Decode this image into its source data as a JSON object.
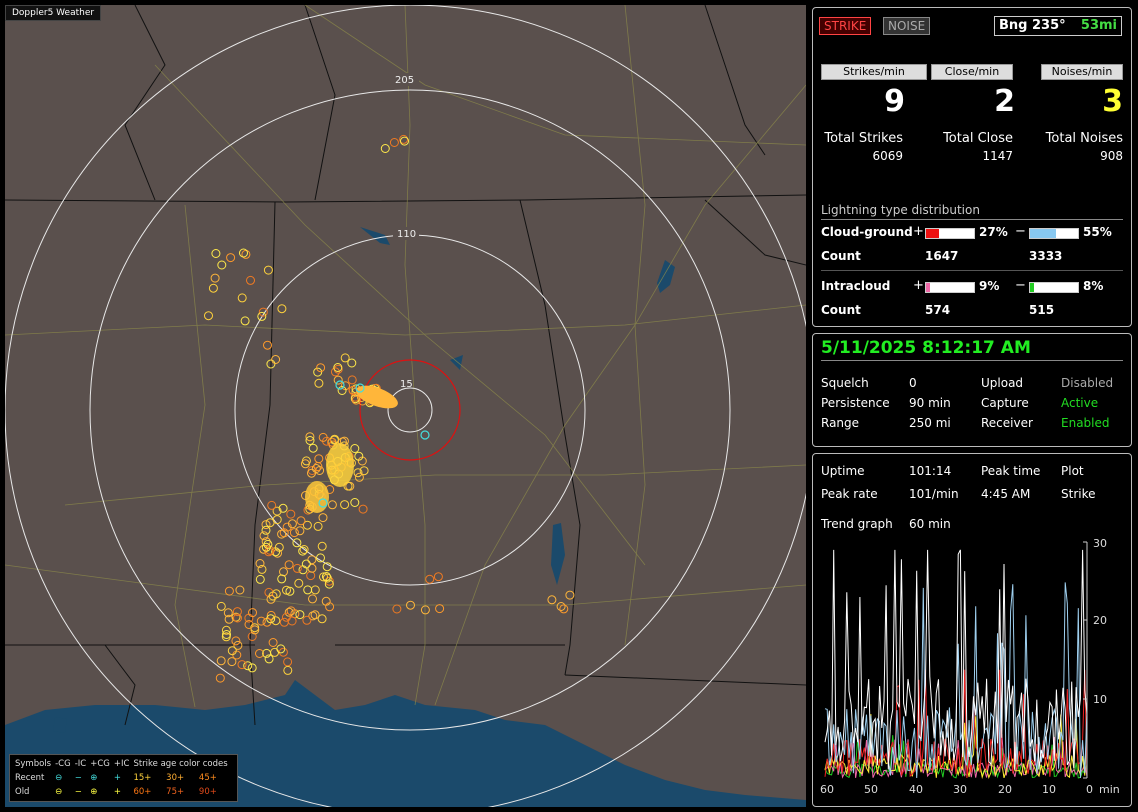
{
  "app_title": "Doppler5 Weather",
  "map": {
    "ring_labels": [
      "205",
      "110",
      "15"
    ],
    "legend": {
      "symbols_label": "Symbols",
      "col_heads": [
        "-CG",
        "-IC",
        "+CG",
        "+IC"
      ],
      "age_label": "Strike age color codes",
      "recent_label": "Recent",
      "old_label": "Old",
      "recent_ages": [
        "15+",
        "30+",
        "45+"
      ],
      "old_ages": [
        "60+",
        "75+",
        "90+"
      ],
      "age_colors": [
        "#ffd23c",
        "#ffae32",
        "#ff8c1e",
        "#ff7814",
        "#f0641e",
        "#e04a1a"
      ]
    },
    "strike_colors": [
      "#ffe94a",
      "#ffd23c",
      "#ffb63a",
      "#ff9a2a",
      "#f07a22"
    ]
  },
  "panel1": {
    "strike_btn": "STRIKE",
    "noise_btn": "NOISE",
    "bearing_label": "Bng 235°",
    "bearing_dist": "53mi",
    "rates": [
      {
        "label": "Strikes/min",
        "value": "9",
        "color": "#ffffff"
      },
      {
        "label": "Close/min",
        "value": "2",
        "color": "#ffffff"
      },
      {
        "label": "Noises/min",
        "value": "3",
        "color": "#ffff33"
      }
    ],
    "totals": [
      {
        "label": "Total Strikes",
        "value": "6069"
      },
      {
        "label": "Total Close",
        "value": "1147"
      },
      {
        "label": "Total Noises",
        "value": "908"
      }
    ],
    "dist_title": "Lightning type distribution",
    "cg_label": "Cloud-ground",
    "ic_label": "Intracloud",
    "count_label": "Count",
    "plus": "+",
    "minus": "−",
    "cg_pos": {
      "pct": "27%",
      "frac": 0.27,
      "count": "1647",
      "color": "#ee1111"
    },
    "cg_neg": {
      "pct": "55%",
      "frac": 0.55,
      "count": "3333",
      "color": "#88c8f0"
    },
    "ic_pos": {
      "pct": "9%",
      "frac": 0.09,
      "count": "574",
      "color": "#f06aa8"
    },
    "ic_neg": {
      "pct": "8%",
      "frac": 0.08,
      "count": "515",
      "color": "#22cc22"
    }
  },
  "panel2": {
    "clock": "5/11/2025 8:12:17 AM",
    "rows": [
      {
        "k1": "Squelch",
        "v1": "0",
        "k2": "Upload",
        "v2": "Disabled",
        "v2c": "#aaaaaa"
      },
      {
        "k1": "Persistence",
        "v1": "90 min",
        "k2": "Capture",
        "v2": "Active",
        "v2c": "#22dd22"
      },
      {
        "k1": "Range",
        "v1": "250 mi",
        "k2": "Receiver",
        "v2": "Enabled",
        "v2c": "#22dd22"
      }
    ]
  },
  "panel3": {
    "uptime_label": "Uptime",
    "uptime": "101:14",
    "peak_time_label": "Peak time",
    "plot_label": "Plot",
    "peak_rate_label": "Peak rate",
    "peak_rate": "101/min",
    "peak_time": "4:45 AM",
    "plot_value": "Strike",
    "trend_label": "Trend graph",
    "trend_value": "60 min",
    "y_ticks": [
      "30",
      "20",
      "10"
    ],
    "x_ticks": [
      "60",
      "50",
      "40",
      "30",
      "20",
      "10",
      "0"
    ],
    "x_unit": "min"
  }
}
